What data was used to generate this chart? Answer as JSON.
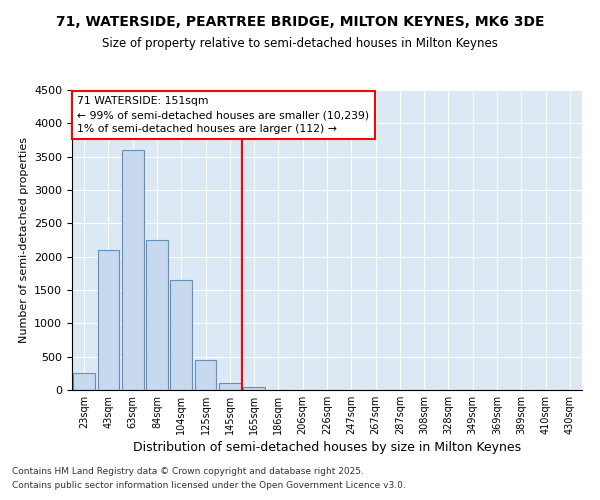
{
  "title1": "71, WATERSIDE, PEARTREE BRIDGE, MILTON KEYNES, MK6 3DE",
  "title2": "Size of property relative to semi-detached houses in Milton Keynes",
  "xlabel": "Distribution of semi-detached houses by size in Milton Keynes",
  "ylabel": "Number of semi-detached properties",
  "categories": [
    "23sqm",
    "43sqm",
    "63sqm",
    "84sqm",
    "104sqm",
    "125sqm",
    "145sqm",
    "165sqm",
    "186sqm",
    "206sqm",
    "226sqm",
    "247sqm",
    "267sqm",
    "287sqm",
    "308sqm",
    "328sqm",
    "349sqm",
    "369sqm",
    "389sqm",
    "410sqm",
    "430sqm"
  ],
  "values": [
    250,
    2100,
    3600,
    2250,
    1650,
    450,
    100,
    50,
    0,
    0,
    0,
    0,
    0,
    0,
    0,
    0,
    0,
    0,
    0,
    0,
    0
  ],
  "bar_color": "#c8d9ee",
  "bar_edge_color": "#6090c0",
  "background_color": "#dce9f5",
  "grid_color": "#ffffff",
  "vline_x_index": 6,
  "vline_color": "red",
  "ylim": [
    0,
    4500
  ],
  "yticks": [
    0,
    500,
    1000,
    1500,
    2000,
    2500,
    3000,
    3500,
    4000,
    4500
  ],
  "annotation_title": "71 WATERSIDE: 151sqm",
  "annotation_line1": "← 99% of semi-detached houses are smaller (10,239)",
  "annotation_line2": "1% of semi-detached houses are larger (112) →",
  "footer1": "Contains HM Land Registry data © Crown copyright and database right 2025.",
  "footer2": "Contains public sector information licensed under the Open Government Licence v3.0."
}
